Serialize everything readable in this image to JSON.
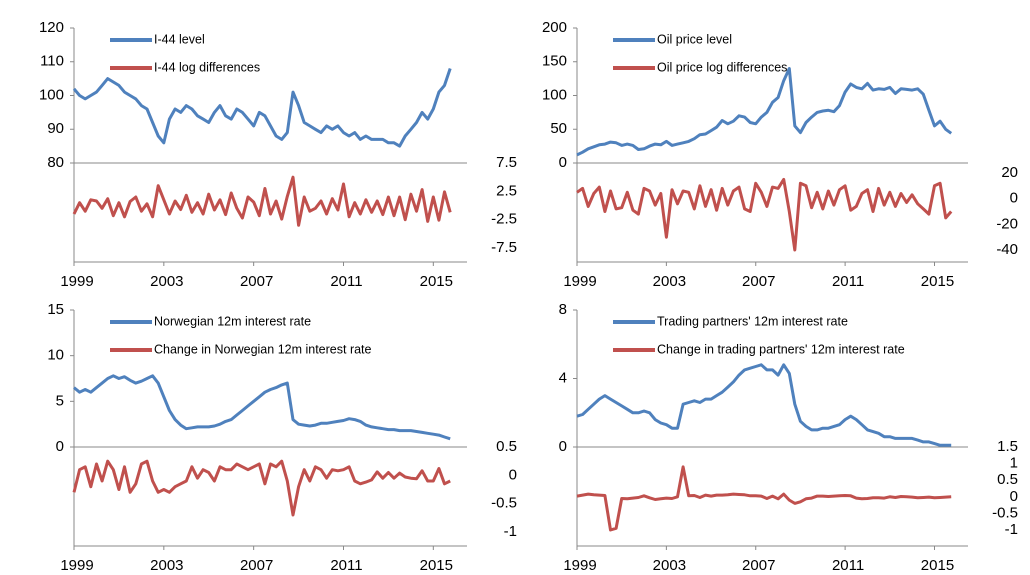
{
  "chart_data": [
    {
      "type": "line",
      "xlim": [
        1999,
        2016.5
      ],
      "xticks": [
        1999,
        2003,
        2007,
        2011,
        2015
      ],
      "ylim": [
        80,
        120
      ],
      "yticks": [
        80,
        90,
        100,
        110,
        120
      ],
      "y2lim": [
        -7.5,
        7.5
      ],
      "y2ticks": [
        7.5,
        2.5,
        -2.5,
        -7.5
      ],
      "x": [
        1999,
        1999.25,
        1999.5,
        1999.75,
        2000,
        2000.25,
        2000.5,
        2000.75,
        2001,
        2001.25,
        2001.5,
        2001.75,
        2002,
        2002.25,
        2002.5,
        2002.75,
        2003,
        2003.25,
        2003.5,
        2003.75,
        2004,
        2004.25,
        2004.5,
        2004.75,
        2005,
        2005.25,
        2005.5,
        2005.75,
        2006,
        2006.25,
        2006.5,
        2006.75,
        2007,
        2007.25,
        2007.5,
        2007.75,
        2008,
        2008.25,
        2008.5,
        2008.75,
        2009,
        2009.25,
        2009.5,
        2009.75,
        2010,
        2010.25,
        2010.5,
        2010.75,
        2011,
        2011.25,
        2011.5,
        2011.75,
        2012,
        2012.25,
        2012.5,
        2012.75,
        2013,
        2013.25,
        2013.5,
        2013.75,
        2014,
        2014.25,
        2014.5,
        2014.75,
        2015,
        2015.25,
        2015.5,
        2015.75
      ],
      "series": [
        {
          "name": "I-44 level",
          "color": "#4f81bd",
          "values": [
            102,
            100,
            99,
            100,
            101,
            103,
            105,
            104,
            103,
            101,
            100,
            99,
            97,
            96,
            92,
            88,
            86,
            93,
            96,
            95,
            97,
            96,
            94,
            93,
            92,
            95,
            97,
            94,
            93,
            96,
            95,
            93,
            91,
            95,
            94,
            91,
            88,
            87,
            89,
            101,
            97,
            92,
            91,
            90,
            89,
            91,
            90,
            91,
            89,
            88,
            89,
            87,
            88,
            87,
            87,
            87,
            86,
            86,
            85,
            88,
            90,
            92,
            95,
            93,
            96,
            101,
            103,
            108
          ]
        },
        {
          "name": "I-44 log differences",
          "color": "#c0504d",
          "axis": "y2",
          "values": [
            -1.5,
            0.5,
            -1,
            1,
            0.8,
            -0.5,
            1.2,
            -1.8,
            0.5,
            -2,
            0.7,
            1.5,
            -1,
            0.3,
            -2,
            3.5,
            1,
            -1.5,
            0.8,
            -0.7,
            1.8,
            -1.2,
            0.5,
            -1.5,
            2,
            -0.8,
            1,
            -1.6,
            2.2,
            -0.5,
            -2.2,
            1.5,
            0.6,
            -1.8,
            3,
            -1.5,
            0.8,
            -2.4,
            1.6,
            5,
            -3.5,
            1.5,
            -1,
            -0.5,
            0.8,
            -1.5,
            1.2,
            -0.8,
            3.8,
            -2,
            0.5,
            -1.5,
            1,
            -1.2,
            0.8,
            -1.6,
            1.5,
            -1.8,
            1.5,
            -2.5,
            2,
            -1,
            2.8,
            -2.8,
            1.5,
            -2.6,
            2.4,
            -1.2
          ]
        }
      ]
    },
    {
      "type": "line",
      "xlim": [
        1999,
        2016.5
      ],
      "xticks": [
        1999,
        2003,
        2007,
        2011,
        2015
      ],
      "ylim": [
        0,
        200
      ],
      "yticks": [
        0,
        50,
        100,
        150,
        200
      ],
      "y2lim": [
        -40,
        20
      ],
      "y2ticks": [
        20,
        0,
        -20,
        -40
      ],
      "x": [
        1999,
        1999.25,
        1999.5,
        1999.75,
        2000,
        2000.25,
        2000.5,
        2000.75,
        2001,
        2001.25,
        2001.5,
        2001.75,
        2002,
        2002.25,
        2002.5,
        2002.75,
        2003,
        2003.25,
        2003.5,
        2003.75,
        2004,
        2004.25,
        2004.5,
        2004.75,
        2005,
        2005.25,
        2005.5,
        2005.75,
        2006,
        2006.25,
        2006.5,
        2006.75,
        2007,
        2007.25,
        2007.5,
        2007.75,
        2008,
        2008.25,
        2008.5,
        2008.75,
        2009,
        2009.25,
        2009.5,
        2009.75,
        2010,
        2010.25,
        2010.5,
        2010.75,
        2011,
        2011.25,
        2011.5,
        2011.75,
        2012,
        2012.25,
        2012.5,
        2012.75,
        2013,
        2013.25,
        2013.5,
        2013.75,
        2014,
        2014.25,
        2014.5,
        2014.75,
        2015,
        2015.25,
        2015.5,
        2015.75
      ],
      "series": [
        {
          "name": "Oil price level",
          "color": "#4f81bd",
          "values": [
            12,
            16,
            21,
            24,
            27,
            28,
            31,
            30,
            26,
            28,
            26,
            20,
            21,
            25,
            28,
            27,
            32,
            26,
            28,
            30,
            32,
            36,
            42,
            43,
            48,
            53,
            63,
            58,
            62,
            70,
            68,
            60,
            58,
            68,
            75,
            90,
            97,
            122,
            140,
            55,
            45,
            60,
            68,
            75,
            77,
            78,
            76,
            85,
            105,
            117,
            112,
            110,
            118,
            108,
            110,
            109,
            112,
            103,
            110,
            109,
            108,
            110,
            102,
            78,
            55,
            62,
            50,
            44
          ]
        },
        {
          "name": "Oil price log differences",
          "color": "#c0504d",
          "axis": "y2",
          "values": [
            5,
            8,
            -6,
            4,
            9,
            -10,
            6,
            -8,
            -7,
            5,
            -9,
            -12,
            8,
            6,
            -5,
            4,
            -30,
            7,
            -4,
            6,
            5,
            -8,
            10,
            -6,
            7,
            -9,
            8,
            -5,
            6,
            9,
            -8,
            -10,
            12,
            5,
            -6,
            9,
            8,
            15,
            -10,
            -40,
            12,
            10,
            -7,
            5,
            -8,
            6,
            -5,
            7,
            10,
            -9,
            -6,
            4,
            7,
            -10,
            8,
            -5,
            5,
            -6,
            4,
            -3,
            3,
            -4,
            -8,
            -12,
            10,
            12,
            -15,
            -10
          ]
        }
      ]
    },
    {
      "type": "line",
      "xlim": [
        1999,
        2016.5
      ],
      "xticks": [
        1999,
        2003,
        2007,
        2011,
        2015
      ],
      "ylim": [
        0,
        15
      ],
      "yticks": [
        0,
        5,
        10,
        15
      ],
      "y2lim": [
        -1,
        0.5
      ],
      "y2ticks": [
        0.5,
        0,
        -0.5,
        -1
      ],
      "x": [
        1999,
        1999.25,
        1999.5,
        1999.75,
        2000,
        2000.25,
        2000.5,
        2000.75,
        2001,
        2001.25,
        2001.5,
        2001.75,
        2002,
        2002.25,
        2002.5,
        2002.75,
        2003,
        2003.25,
        2003.5,
        2003.75,
        2004,
        2004.25,
        2004.5,
        2004.75,
        2005,
        2005.25,
        2005.5,
        2005.75,
        2006,
        2006.25,
        2006.5,
        2006.75,
        2007,
        2007.25,
        2007.5,
        2007.75,
        2008,
        2008.25,
        2008.5,
        2008.75,
        2009,
        2009.25,
        2009.5,
        2009.75,
        2010,
        2010.25,
        2010.5,
        2010.75,
        2011,
        2011.25,
        2011.5,
        2011.75,
        2012,
        2012.25,
        2012.5,
        2012.75,
        2013,
        2013.25,
        2013.5,
        2013.75,
        2014,
        2014.25,
        2014.5,
        2014.75,
        2015,
        2015.25,
        2015.5,
        2015.75
      ],
      "series": [
        {
          "name": "Norwegian 12m interest rate",
          "color": "#4f81bd",
          "values": [
            6.5,
            6,
            6.3,
            6,
            6.5,
            7,
            7.5,
            7.8,
            7.5,
            7.7,
            7.3,
            7,
            7.2,
            7.5,
            7.8,
            7,
            5.5,
            4,
            3,
            2.4,
            2,
            2.1,
            2.2,
            2.2,
            2.2,
            2.3,
            2.5,
            2.8,
            3,
            3.5,
            4,
            4.5,
            5,
            5.5,
            6,
            6.3,
            6.5,
            6.8,
            7,
            3,
            2.5,
            2.4,
            2.3,
            2.4,
            2.6,
            2.6,
            2.7,
            2.8,
            2.9,
            3.1,
            3,
            2.8,
            2.4,
            2.2,
            2.1,
            2,
            1.9,
            1.9,
            1.8,
            1.8,
            1.8,
            1.7,
            1.6,
            1.5,
            1.4,
            1.3,
            1.1,
            0.9
          ]
        },
        {
          "name": "Change in Norwegian 12m interest rate",
          "color": "#c0504d",
          "axis": "y2",
          "values": [
            -0.3,
            0.1,
            0.15,
            -0.2,
            0.2,
            -0.1,
            0.25,
            0.1,
            -0.25,
            0.15,
            -0.3,
            -0.15,
            0.2,
            0.25,
            -0.1,
            -0.3,
            -0.25,
            -0.3,
            -0.2,
            -0.15,
            -0.1,
            0.15,
            -0.05,
            0.1,
            0.05,
            -0.1,
            0.15,
            0.1,
            0.1,
            0.2,
            0.15,
            0.1,
            0.15,
            0.2,
            -0.15,
            0.2,
            0.15,
            0.25,
            -0.1,
            -0.7,
            -0.2,
            0.1,
            -0.1,
            0.15,
            0.1,
            -0.05,
            0.1,
            0.08,
            0.1,
            0.15,
            -0.1,
            -0.15,
            -0.12,
            -0.08,
            0.06,
            -0.05,
            0.05,
            -0.05,
            0.04,
            -0.03,
            -0.05,
            -0.06,
            0.08,
            -0.1,
            -0.1,
            0.12,
            -0.15,
            -0.1
          ]
        }
      ]
    },
    {
      "type": "line",
      "xlim": [
        1999,
        2016.5
      ],
      "xticks": [
        1999,
        2003,
        2007,
        2011,
        2015
      ],
      "ylim": [
        0,
        8
      ],
      "yticks": [
        0,
        4,
        8
      ],
      "y2lim": [
        -1,
        1.5
      ],
      "y2ticks": [
        1.5,
        1,
        0.5,
        0,
        -0.5,
        -1
      ],
      "x": [
        1999,
        1999.25,
        1999.5,
        1999.75,
        2000,
        2000.25,
        2000.5,
        2000.75,
        2001,
        2001.25,
        2001.5,
        2001.75,
        2002,
        2002.25,
        2002.5,
        2002.75,
        2003,
        2003.25,
        2003.5,
        2003.75,
        2004,
        2004.25,
        2004.5,
        2004.75,
        2005,
        2005.25,
        2005.5,
        2005.75,
        2006,
        2006.25,
        2006.5,
        2006.75,
        2007,
        2007.25,
        2007.5,
        2007.75,
        2008,
        2008.25,
        2008.5,
        2008.75,
        2009,
        2009.25,
        2009.5,
        2009.75,
        2010,
        2010.25,
        2010.5,
        2010.75,
        2011,
        2011.25,
        2011.5,
        2011.75,
        2012,
        2012.25,
        2012.5,
        2012.75,
        2013,
        2013.25,
        2013.5,
        2013.75,
        2014,
        2014.25,
        2014.5,
        2014.75,
        2015,
        2015.25,
        2015.5,
        2015.75
      ],
      "series": [
        {
          "name": "Trading partners' 12m interest rate",
          "color": "#4f81bd",
          "values": [
            1.8,
            1.9,
            2.2,
            2.5,
            2.8,
            3,
            2.8,
            2.6,
            2.4,
            2.2,
            2,
            2,
            2.1,
            2,
            1.6,
            1.4,
            1.3,
            1.1,
            1.1,
            2.5,
            2.6,
            2.7,
            2.6,
            2.8,
            2.8,
            3,
            3.2,
            3.5,
            3.8,
            4.2,
            4.5,
            4.6,
            4.7,
            4.8,
            4.5,
            4.5,
            4.2,
            4.8,
            4.3,
            2.5,
            1.5,
            1.2,
            1,
            1,
            1.1,
            1.1,
            1.2,
            1.3,
            1.6,
            1.8,
            1.6,
            1.3,
            1,
            0.9,
            0.8,
            0.6,
            0.6,
            0.5,
            0.5,
            0.5,
            0.5,
            0.4,
            0.3,
            0.3,
            0.2,
            0.1,
            0.1,
            0.1
          ]
        },
        {
          "name": "Change in trading partners' 12m interest rate",
          "color": "#c0504d",
          "axis": "y2",
          "values": [
            0.02,
            0.05,
            0.08,
            0.06,
            0.05,
            0.04,
            -1,
            -0.95,
            -0.05,
            -0.06,
            -0.04,
            -0.02,
            0.03,
            -0.03,
            -0.08,
            -0.06,
            -0.04,
            -0.05,
            0,
            0.9,
            0.03,
            0.04,
            -0.02,
            0.05,
            0.02,
            0.05,
            0.05,
            0.06,
            0.08,
            0.07,
            0.06,
            0.03,
            0.03,
            0.02,
            -0.05,
            0.02,
            -0.06,
            0.08,
            -0.1,
            -0.2,
            -0.15,
            -0.06,
            -0.04,
            0.02,
            0.02,
            0.01,
            0.02,
            0.03,
            0.04,
            0.03,
            -0.04,
            -0.06,
            -0.05,
            -0.03,
            -0.03,
            -0.04,
            0,
            -0.02,
            0.01,
            0,
            -0.01,
            -0.03,
            -0.02,
            -0.01,
            -0.03,
            -0.02,
            -0.01,
            0
          ]
        }
      ]
    }
  ]
}
